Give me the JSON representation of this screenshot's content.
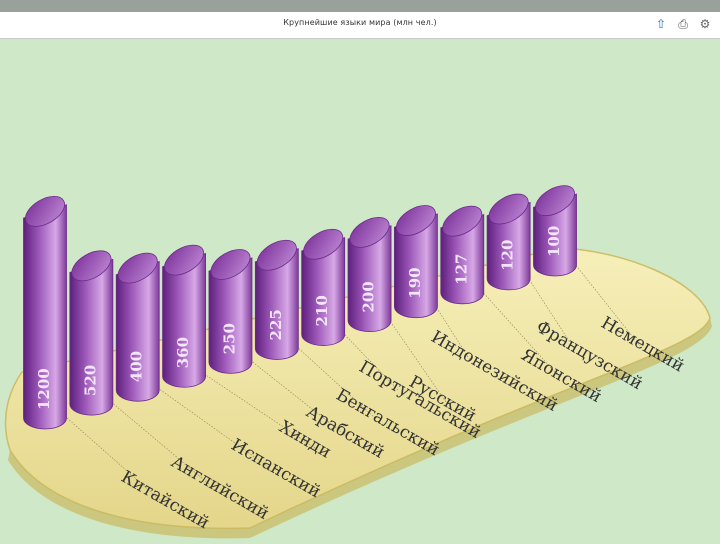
{
  "window": {
    "title": "Крупнейшие языки мира (млн чел.)",
    "icons": [
      "export-icon",
      "print-icon",
      "settings-icon"
    ]
  },
  "colors": {
    "background": "#cfe8c7",
    "platform": "#f2e9a6",
    "platform_edge": "#cdbd68",
    "bar_light": "#d7a8e6",
    "bar_mid": "#9b56b7",
    "bar_dark": "#5d1f7c"
  },
  "chart_data": {
    "type": "bar",
    "title": "Крупнейшие языки мира (млн чел.)",
    "categories": [
      "Китайский",
      "Английский",
      "Испанский",
      "Хинди",
      "Арабский",
      "Бенгальский",
      "Португальский",
      "Русский",
      "Индонезийский",
      "Японский",
      "Французский",
      "Немецкий"
    ],
    "values": [
      1200,
      520,
      400,
      360,
      250,
      225,
      210,
      200,
      190,
      127,
      120,
      100
    ],
    "value_labels": [
      "1200",
      "520",
      "400",
      "360",
      "250",
      "225",
      "210",
      "200",
      "190",
      "127",
      "120",
      "100"
    ],
    "xlabel": "",
    "ylabel": "",
    "ylim": [
      0,
      1200
    ]
  }
}
